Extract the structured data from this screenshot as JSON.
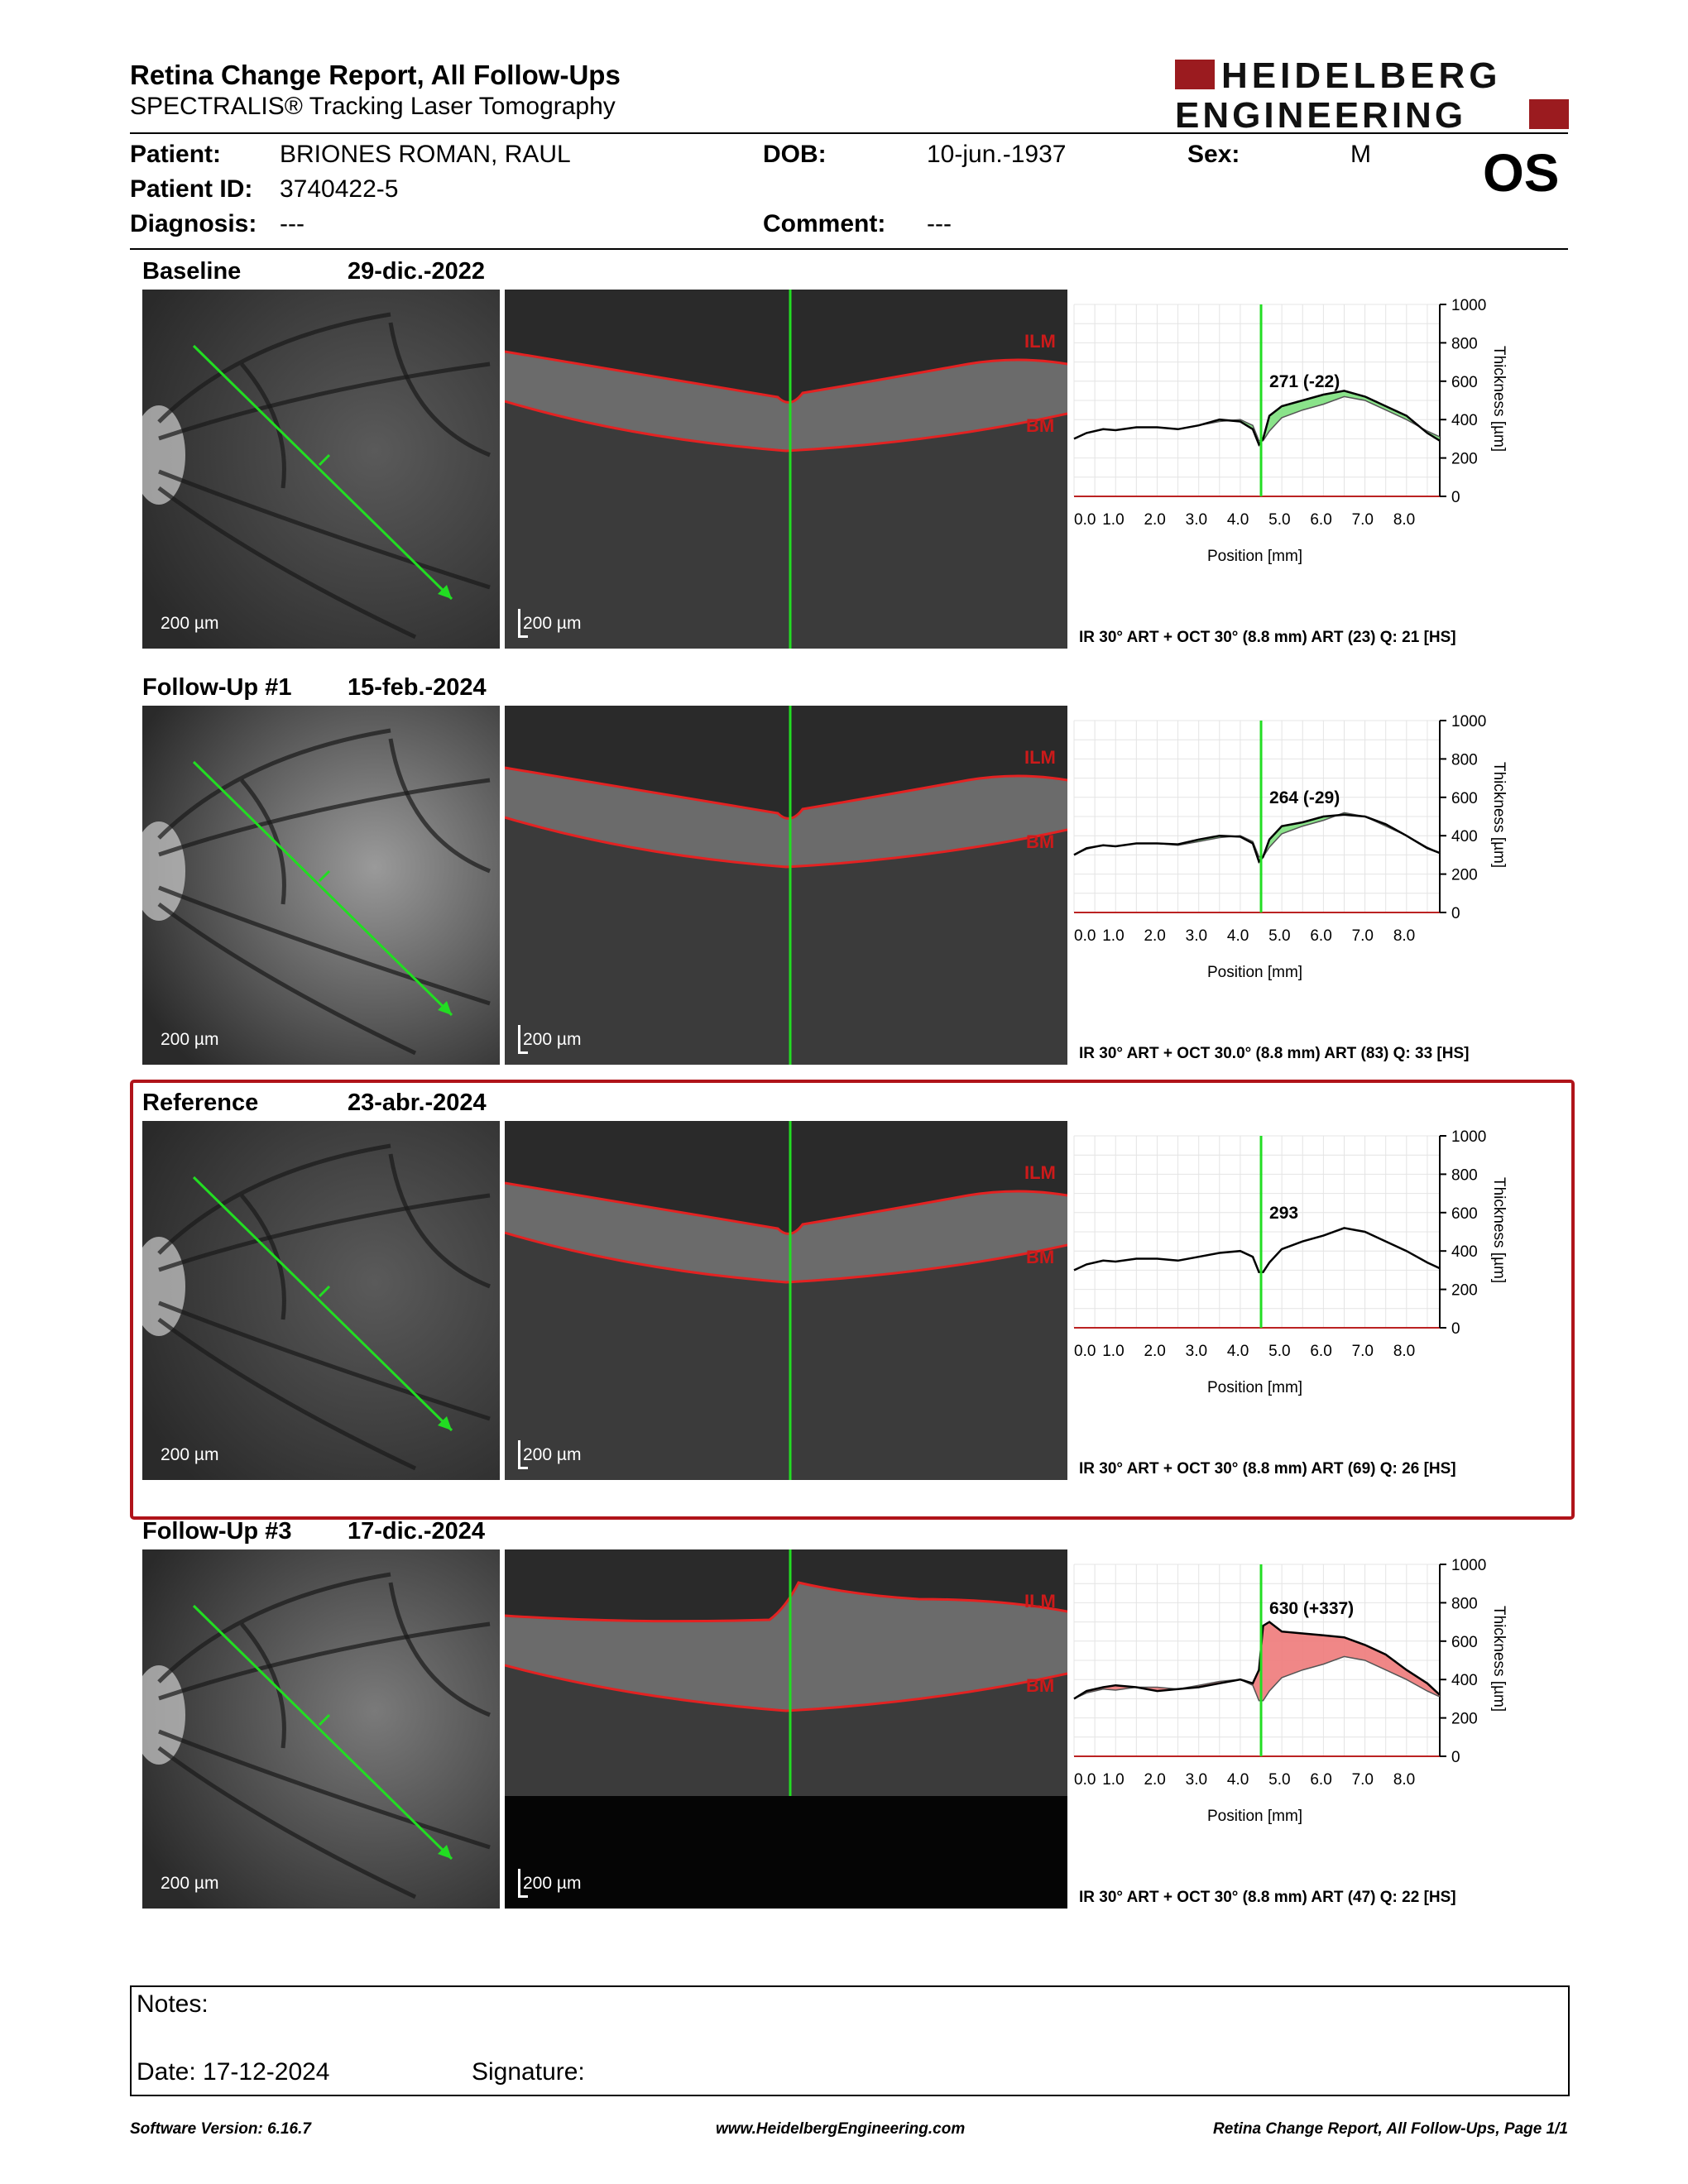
{
  "header": {
    "title": "Retina Change Report, All Follow-Ups",
    "subtitle": "SPECTRALIS® Tracking Laser Tomography",
    "logo_line1": "HEIDELBERG",
    "logo_line2": "ENGINEERING",
    "eye": "OS",
    "logo_color": "#9b1b1f"
  },
  "patient": {
    "name_label": "Patient:",
    "name": "BRIONES ROMAN, RAUL",
    "id_label": "Patient ID:",
    "id": "3740422-5",
    "diagnosis_label": "Diagnosis:",
    "diagnosis": "---",
    "dob_label": "DOB:",
    "dob": "10-jun.-1937",
    "comment_label": "Comment:",
    "comment": "---",
    "sex_label": "Sex:",
    "sex": "M"
  },
  "exams": [
    {
      "label": "Baseline",
      "date": "29-dic.-2022",
      "scale_ir": "200 µm",
      "scale_oct": "200 µm",
      "meta": "IR 30° ART + OCT 30° (8.8 mm) ART (23) Q: 21 [HS]",
      "ilm": "ILM",
      "bm": "BM",
      "thickness_label": "271 (-22)",
      "change": "decrease",
      "highlighted": false
    },
    {
      "label": "Follow-Up #1",
      "date": "15-feb.-2024",
      "scale_ir": "200 µm",
      "scale_oct": "200 µm",
      "meta": "IR 30° ART + OCT 30.0° (8.8 mm) ART (83) Q: 33 [HS]",
      "ilm": "ILM",
      "bm": "BM",
      "thickness_label": "264 (-29)",
      "change": "decrease",
      "highlighted": false
    },
    {
      "label": "Reference",
      "date": "23-abr.-2024",
      "scale_ir": "200 µm",
      "scale_oct": "200 µm",
      "meta": "IR 30° ART + OCT 30° (8.8 mm) ART (69) Q: 26 [HS]",
      "ilm": "ILM",
      "bm": "BM",
      "thickness_label": "293",
      "change": "none",
      "highlighted": true
    },
    {
      "label": "Follow-Up #3",
      "date": "17-dic.-2024",
      "scale_ir": "200 µm",
      "scale_oct": "200 µm",
      "meta": "IR 30° ART + OCT 30° (8.8 mm) ART (47) Q: 22 [HS]",
      "ilm": "ILM",
      "bm": "BM",
      "thickness_label": "630 (+337)",
      "change": "increase",
      "highlighted": false
    }
  ],
  "chart_data": {
    "type": "line",
    "xlabel": "Position [mm]",
    "ylabel": "Thickness [µm]",
    "x_ticks": [
      "0.0",
      "1.0",
      "2.0",
      "3.0",
      "4.0",
      "5.0",
      "6.0",
      "7.0",
      "8.0"
    ],
    "y_ticks": [
      "0",
      "200",
      "400",
      "600",
      "800",
      "1000"
    ],
    "xlim": [
      0,
      8.8
    ],
    "ylim": [
      0,
      1000
    ],
    "cursor_x": 4.5,
    "grid": true,
    "colors": {
      "decrease": "#7de07d",
      "increase": "#ee7a7a",
      "cursor": "#22dd22"
    },
    "reference_x": [
      0,
      0.3,
      0.7,
      1.0,
      1.5,
      2.0,
      2.5,
      3.0,
      3.5,
      4.0,
      4.3,
      4.45,
      4.55,
      4.7,
      5.0,
      5.5,
      6.0,
      6.5,
      7.0,
      7.5,
      8.0,
      8.5,
      8.8
    ],
    "reference_y": [
      300,
      330,
      350,
      345,
      360,
      360,
      350,
      370,
      390,
      400,
      370,
      290,
      290,
      340,
      410,
      450,
      480,
      520,
      500,
      450,
      400,
      340,
      310
    ],
    "series": [
      {
        "values": [
          300,
          330,
          350,
          345,
          360,
          360,
          350,
          370,
          400,
          390,
          350,
          270,
          300,
          420,
          470,
          500,
          530,
          550,
          520,
          470,
          420,
          330,
          290
        ]
      },
      {
        "values": [
          300,
          335,
          350,
          345,
          360,
          360,
          355,
          380,
          400,
          395,
          360,
          265,
          290,
          380,
          450,
          470,
          500,
          510,
          500,
          460,
          400,
          335,
          310
        ]
      },
      {
        "values": [
          300,
          330,
          350,
          345,
          360,
          360,
          350,
          370,
          390,
          400,
          370,
          290,
          290,
          340,
          410,
          450,
          480,
          520,
          500,
          450,
          400,
          340,
          310
        ]
      },
      {
        "values": [
          300,
          340,
          360,
          370,
          360,
          340,
          350,
          360,
          380,
          400,
          380,
          450,
          680,
          700,
          650,
          640,
          630,
          620,
          580,
          530,
          450,
          380,
          320
        ]
      }
    ]
  },
  "notes": {
    "label": "Notes:",
    "date_label": "Date: 17-12-2024",
    "signature_label": "Signature:"
  },
  "footer": {
    "version": "Software Version: 6.16.7",
    "website": "www.HeidelbergEngineering.com",
    "page": "Retina Change Report, All Follow-Ups, Page 1/1"
  }
}
